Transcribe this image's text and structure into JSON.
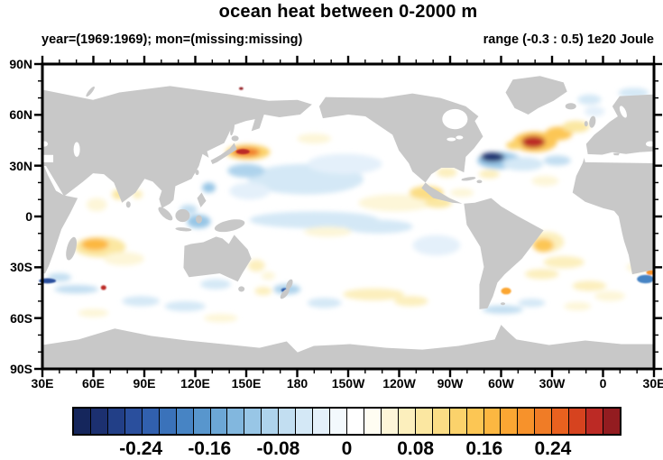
{
  "title": "ocean heat between 0-2000 m",
  "subtitle_left": "year=(1969:1969); mon=(missing:missing)",
  "subtitle_right": "range (-0.3 : 0.5) 1e20 Joule",
  "colors": {
    "land": "#c8c8c8",
    "ocean": "#ffffff",
    "frame": "#000000",
    "text": "#000000"
  },
  "map": {
    "lon_ticks": [
      {
        "label": "30E",
        "lon": 30
      },
      {
        "label": "60E",
        "lon": 60
      },
      {
        "label": "90E",
        "lon": 90
      },
      {
        "label": "120E",
        "lon": 120
      },
      {
        "label": "150E",
        "lon": 150
      },
      {
        "label": "180",
        "lon": 180
      },
      {
        "label": "150W",
        "lon": 210
      },
      {
        "label": "120W",
        "lon": 240
      },
      {
        "label": "90W",
        "lon": 270
      },
      {
        "label": "60W",
        "lon": 300
      },
      {
        "label": "30W",
        "lon": 330
      },
      {
        "label": "0",
        "lon": 360
      },
      {
        "label": "30E",
        "lon": 390
      }
    ],
    "lat_ticks": [
      {
        "label": "90N",
        "lat": 90
      },
      {
        "label": "60N",
        "lat": 60
      },
      {
        "label": "30N",
        "lat": 30
      },
      {
        "label": "0",
        "lat": 0
      },
      {
        "label": "30S",
        "lat": -30
      },
      {
        "label": "60S",
        "lat": -60
      },
      {
        "label": "90S",
        "lat": -90
      }
    ],
    "minor_tick_step_deg": 10,
    "major_tick_step_deg": 30
  },
  "colorbar": {
    "vmin": -0.32,
    "vmax": 0.32,
    "step": 0.02,
    "colors": [
      "#15265c",
      "#1c3070",
      "#223f87",
      "#2a4f9d",
      "#3160ae",
      "#3a72ba",
      "#4784c4",
      "#5896cd",
      "#6ca7d6",
      "#82b7de",
      "#98c6e6",
      "#aed3ec",
      "#c2def1",
      "#d4e8f6",
      "#e4f0fa",
      "#f3f9fd",
      "#ffffff",
      "#fffdf2",
      "#fdf6d8",
      "#fcefbd",
      "#fbe7a1",
      "#fbdd85",
      "#fbd26b",
      "#fcc654",
      "#fcb741",
      "#fba633",
      "#f7922b",
      "#f07c26",
      "#e9611f",
      "#d6431f",
      "#bc2a25",
      "#931c20"
    ],
    "tick_labels": [
      {
        "label": "-0.24",
        "value": -0.24
      },
      {
        "label": "-0.16",
        "value": -0.16
      },
      {
        "label": "-0.08",
        "value": -0.08
      },
      {
        "label": "0",
        "value": 0
      },
      {
        "label": "0.08",
        "value": 0.08
      },
      {
        "label": "0.16",
        "value": 0.16
      },
      {
        "label": "0.24",
        "value": 0.24
      }
    ]
  },
  "chart_data": {
    "type": "heatmap",
    "title": "ocean heat between 0-2000 m",
    "units": "1e20 Joule",
    "value_range": [
      -0.3,
      0.5
    ],
    "lon_range": [
      30,
      390
    ],
    "lat_range": [
      -90,
      90
    ],
    "projection": "equirectangular, Pacific-centered",
    "anomalies": [
      {
        "lon": 185,
        "lat": 22,
        "rx": 34,
        "ry": 9,
        "v": -0.05
      },
      {
        "lon": 208,
        "lat": 31,
        "rx": 22,
        "ry": 6,
        "v": -0.04
      },
      {
        "lon": 152,
        "lat": 15,
        "rx": 12,
        "ry": 5,
        "v": -0.04
      },
      {
        "lon": 190,
        "lat": -2,
        "rx": 38,
        "ry": 5,
        "v": -0.05
      },
      {
        "lon": 228,
        "lat": -6,
        "rx": 20,
        "ry": 4,
        "v": -0.05
      },
      {
        "lon": 150,
        "lat": 27,
        "rx": 11,
        "ry": 4,
        "v": -0.09
      },
      {
        "lon": 128,
        "lat": 17,
        "rx": 4,
        "ry": 3,
        "v": -0.12
      },
      {
        "lon": 151,
        "lat": 38,
        "rx": 13,
        "ry": 4.5,
        "v": 0.12
      },
      {
        "lon": 150,
        "lat": 38,
        "rx": 8,
        "ry": 2.6,
        "v": 0.22
      },
      {
        "lon": 148,
        "lat": 38.3,
        "rx": 4,
        "ry": 1.5,
        "v": 0.28,
        "sharp": true
      },
      {
        "lon": 190,
        "lat": 46,
        "rx": 10,
        "ry": 3,
        "v": 0.04
      },
      {
        "lon": 238,
        "lat": 8,
        "rx": 22,
        "ry": 5,
        "v": 0.05
      },
      {
        "lon": 256,
        "lat": 14,
        "rx": 10,
        "ry": 4,
        "v": 0.11
      },
      {
        "lon": 263,
        "lat": 8,
        "rx": 8,
        "ry": 3,
        "v": 0.08
      },
      {
        "lon": 198,
        "lat": -9,
        "rx": 14,
        "ry": 3,
        "v": 0.05
      },
      {
        "lon": 262,
        "lat": -17,
        "rx": 14,
        "ry": 6,
        "v": -0.04
      },
      {
        "lon": 225,
        "lat": -46,
        "rx": 18,
        "ry": 3.5,
        "v": 0.06
      },
      {
        "lon": 247,
        "lat": -50,
        "rx": 10,
        "ry": 3,
        "v": 0.07
      },
      {
        "lon": 196,
        "lat": -51,
        "rx": 10,
        "ry": 3,
        "v": -0.06
      },
      {
        "lon": 174,
        "lat": -43,
        "rx": 8,
        "ry": 3,
        "v": -0.09
      },
      {
        "lon": 172.5,
        "lat": -43.5,
        "rx": 2,
        "ry": 1.2,
        "v": -0.24,
        "sharp": true
      },
      {
        "lon": 160,
        "lat": -44,
        "rx": 5,
        "ry": 2.5,
        "v": 0.06
      },
      {
        "lon": 156,
        "lat": -29,
        "rx": 5,
        "ry": 3.5,
        "v": 0.07
      },
      {
        "lon": 163,
        "lat": -35,
        "rx": 4,
        "ry": 2.5,
        "v": 0.05
      },
      {
        "lon": 132,
        "lat": -40,
        "rx": 9,
        "ry": 3,
        "v": -0.06
      },
      {
        "lon": 64,
        "lat": -18,
        "rx": 15,
        "ry": 6,
        "v": 0.08
      },
      {
        "lon": 61,
        "lat": -16.5,
        "rx": 8,
        "ry": 3.5,
        "v": 0.17
      },
      {
        "lon": 78,
        "lat": -25,
        "rx": 12,
        "ry": 4,
        "v": 0.05
      },
      {
        "lon": 62,
        "lat": 7,
        "rx": 6,
        "ry": 4,
        "v": 0.05
      },
      {
        "lon": 75,
        "lat": 13,
        "rx": 4,
        "ry": 3,
        "v": 0.09
      },
      {
        "lon": 86,
        "lat": 13,
        "rx": 3,
        "ry": 2.5,
        "v": 0.06
      },
      {
        "lon": 122,
        "lat": -3,
        "rx": 7,
        "ry": 4,
        "v": -0.12
      },
      {
        "lon": 116,
        "lat": 4,
        "rx": 5,
        "ry": 3,
        "v": -0.07
      },
      {
        "lon": 50,
        "lat": -43,
        "rx": 13,
        "ry": 2.5,
        "v": -0.08
      },
      {
        "lon": 40,
        "lat": -36,
        "rx": 7,
        "ry": 2.5,
        "v": -0.08
      },
      {
        "lon": 33,
        "lat": -38,
        "rx": 5,
        "ry": 1.5,
        "v": -0.26,
        "sharp": true
      },
      {
        "lon": 66,
        "lat": -42,
        "rx": 1.6,
        "ry": 1.4,
        "v": 0.28,
        "sharp": true
      },
      {
        "lon": 88,
        "lat": -50,
        "rx": 11,
        "ry": 3,
        "v": -0.05
      },
      {
        "lon": 114,
        "lat": -53,
        "rx": 12,
        "ry": 3,
        "v": -0.06
      },
      {
        "lon": 60,
        "lat": -57,
        "rx": 9,
        "ry": 2.5,
        "v": 0.05
      },
      {
        "lon": 135,
        "lat": -60,
        "rx": 10,
        "ry": 2.5,
        "v": 0.04
      },
      {
        "lon": 299,
        "lat": 33,
        "rx": 13,
        "ry": 5,
        "v": -0.11
      },
      {
        "lon": 295,
        "lat": 35,
        "rx": 7,
        "ry": 2.8,
        "v": -0.28
      },
      {
        "lon": 313,
        "lat": 31,
        "rx": 12,
        "ry": 4,
        "v": -0.06
      },
      {
        "lon": 333,
        "lat": 33,
        "rx": 8,
        "ry": 3,
        "v": -0.08
      },
      {
        "lon": 320,
        "lat": 44,
        "rx": 13,
        "ry": 6,
        "v": 0.15
      },
      {
        "lon": 319,
        "lat": 44,
        "rx": 7,
        "ry": 3.5,
        "v": 0.28
      },
      {
        "lon": 334,
        "lat": 49,
        "rx": 8,
        "ry": 4,
        "v": 0.14
      },
      {
        "lon": 344,
        "lat": 53,
        "rx": 8,
        "ry": 3.5,
        "v": 0.08
      },
      {
        "lon": 308,
        "lat": 42,
        "rx": 5,
        "ry": 2.5,
        "v": 0.12
      },
      {
        "lon": 326,
        "lat": 21,
        "rx": 8,
        "ry": 3,
        "v": 0.05
      },
      {
        "lon": 293,
        "lat": 25,
        "rx": 6,
        "ry": 2.5,
        "v": 0.06
      },
      {
        "lon": 268,
        "lat": 26,
        "rx": 6,
        "ry": 3,
        "v": 0.07
      },
      {
        "lon": 277,
        "lat": 14,
        "rx": 7,
        "ry": 2.5,
        "v": 0.05
      },
      {
        "lon": 327,
        "lat": -15,
        "rx": 10,
        "ry": 6,
        "v": 0.07
      },
      {
        "lon": 325,
        "lat": -17,
        "rx": 6,
        "ry": 4,
        "v": 0.14
      },
      {
        "lon": 337,
        "lat": -27,
        "rx": 12,
        "ry": 3.5,
        "v": 0.06
      },
      {
        "lon": 324,
        "lat": -34,
        "rx": 10,
        "ry": 3,
        "v": 0.06
      },
      {
        "lon": 303,
        "lat": -44,
        "rx": 3,
        "ry": 2,
        "v": 0.18,
        "sharp": true
      },
      {
        "lon": 301,
        "lat": -55,
        "rx": 12,
        "ry": 2.5,
        "v": -0.08
      },
      {
        "lon": 318,
        "lat": -51,
        "rx": 8,
        "ry": 2.5,
        "v": -0.05
      },
      {
        "lon": 352,
        "lat": -41,
        "rx": 10,
        "ry": 3,
        "v": 0.07
      },
      {
        "lon": 364,
        "lat": -47,
        "rx": 9,
        "ry": 3,
        "v": 0.05
      },
      {
        "lon": 345,
        "lat": -53,
        "rx": 8,
        "ry": 2.5,
        "v": 0.04
      },
      {
        "lon": 385,
        "lat": -37,
        "rx": 5,
        "ry": 2.5,
        "v": -0.2,
        "sharp": true
      },
      {
        "lon": 388,
        "lat": -33,
        "rx": 2.5,
        "ry": 1.5,
        "v": 0.2,
        "sharp": true
      },
      {
        "lon": 380,
        "lat": -30,
        "rx": 6,
        "ry": 3,
        "v": 0.05
      },
      {
        "lon": 352,
        "lat": 69,
        "rx": 7,
        "ry": 3,
        "v": -0.05
      },
      {
        "lon": 378,
        "lat": 73,
        "rx": 9,
        "ry": 3,
        "v": -0.05
      },
      {
        "lon": 355,
        "lat": 62,
        "rx": 6,
        "ry": 3,
        "v": -0.04
      },
      {
        "lon": 147,
        "lat": 75.5,
        "rx": 1.2,
        "ry": 0.8,
        "v": 0.3,
        "sharp": true
      }
    ]
  }
}
